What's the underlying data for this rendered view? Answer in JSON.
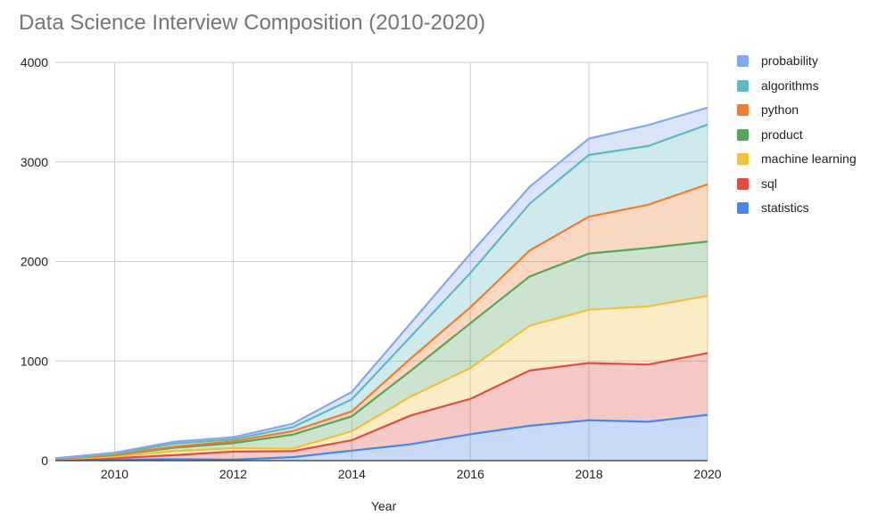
{
  "chart_data": {
    "type": "area",
    "stacked": true,
    "title": "Data Science Interview Composition (2010-2020)",
    "xlabel": "Year",
    "ylabel": "",
    "xlim": [
      2009,
      2020
    ],
    "ylim": [
      0,
      4000
    ],
    "x_ticks": [
      "2010",
      "2012",
      "2014",
      "2016",
      "2018",
      "2020"
    ],
    "y_ticks": [
      "0",
      "1000",
      "2000",
      "3000",
      "4000"
    ],
    "grid": true,
    "legend": "right",
    "x": [
      2009,
      2010,
      2011,
      2012,
      2013,
      2014,
      2015,
      2016,
      2017,
      2018,
      2019,
      2020
    ],
    "series": [
      {
        "name": "statistics",
        "color": "#4a86e8",
        "values": [
          5,
          10,
          15,
          10,
          35,
          100,
          165,
          265,
          350,
          405,
          390,
          460
        ]
      },
      {
        "name": "sql",
        "color": "#dd5041",
        "values": [
          5,
          15,
          40,
          80,
          60,
          105,
          290,
          355,
          555,
          575,
          575,
          620
        ]
      },
      {
        "name": "machine learning",
        "color": "#f2c040",
        "values": [
          3,
          15,
          40,
          35,
          25,
          90,
          190,
          310,
          450,
          535,
          585,
          575
        ]
      },
      {
        "name": "product",
        "color": "#57a55a",
        "values": [
          3,
          15,
          35,
          50,
          140,
          150,
          260,
          450,
          495,
          565,
          585,
          545
        ]
      },
      {
        "name": "python",
        "color": "#f07c2e",
        "values": [
          2,
          5,
          10,
          20,
          35,
          50,
          125,
          160,
          260,
          370,
          435,
          575
        ]
      },
      {
        "name": "algorithms",
        "color": "#5fb8c2",
        "values": [
          2,
          10,
          30,
          20,
          40,
          120,
          220,
          345,
          470,
          620,
          590,
          600
        ]
      },
      {
        "name": "probability",
        "color": "#86a8ea",
        "values": [
          3,
          10,
          20,
          20,
          35,
          75,
          135,
          195,
          170,
          165,
          210,
          170
        ]
      }
    ]
  }
}
